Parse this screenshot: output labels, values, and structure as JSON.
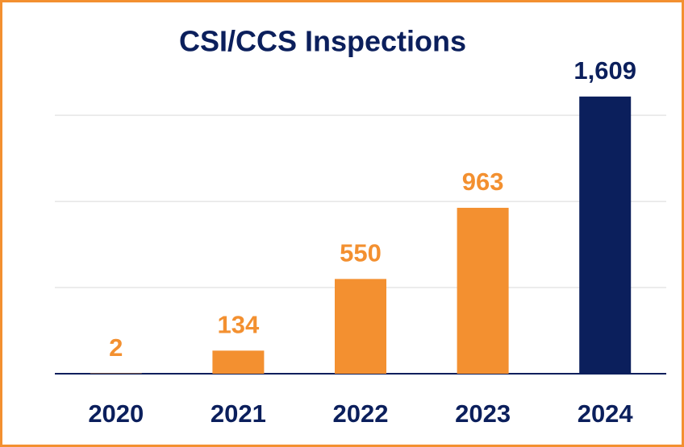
{
  "chart_data": {
    "type": "bar",
    "title": "CSI/CCS Inspections",
    "categories": [
      "2020",
      "2021",
      "2022",
      "2023",
      "2024"
    ],
    "values": [
      2,
      134,
      550,
      963,
      1609
    ],
    "value_labels": [
      "2",
      "134",
      "550",
      "963",
      "1,609"
    ],
    "colors": [
      "#f39030",
      "#f39030",
      "#f39030",
      "#f39030",
      "#0b1f5c"
    ],
    "ylim": [
      0,
      1800
    ],
    "yticks": [
      0,
      500,
      1000,
      1500
    ],
    "grid": true
  }
}
